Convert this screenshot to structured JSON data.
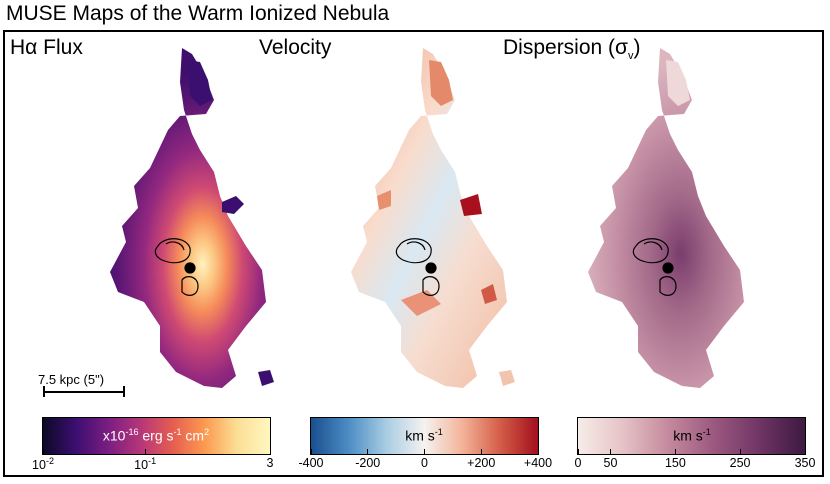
{
  "figure": {
    "title": "MUSE Maps of the Warm Ionized Nebula"
  },
  "panels": [
    {
      "label_main": "Hα Flux",
      "label_sub": "",
      "label_end": "",
      "colormap": "magma",
      "colorbar": {
        "unit_main": "x10",
        "unit_exp": "-16",
        "unit_rest": " erg s",
        "unit_exp2": "-1",
        "unit_rest2": " cm",
        "unit_exp3": "2",
        "ticks": [
          {
            "main": "10",
            "exp": "-2",
            "at": 0.0
          },
          {
            "main": "10",
            "exp": "-1",
            "at": 0.45
          },
          {
            "main": "3",
            "exp": "",
            "at": 1.0
          }
        ]
      }
    },
    {
      "label_main": "Velocity",
      "label_sub": "",
      "label_end": "",
      "colormap": "diverging",
      "colorbar": {
        "unit_main": "km s",
        "unit_exp": "-1",
        "unit_rest": "",
        "unit_exp2": "",
        "unit_rest2": "",
        "unit_exp3": "",
        "ticks": [
          {
            "main": "-400",
            "exp": "",
            "at": 0.0
          },
          {
            "main": "-200",
            "exp": "",
            "at": 0.25
          },
          {
            "main": "0",
            "exp": "",
            "at": 0.5
          },
          {
            "main": "+200",
            "exp": "",
            "at": 0.75
          },
          {
            "main": "+400",
            "exp": "",
            "at": 1.0
          }
        ]
      }
    },
    {
      "label_main": "Dispersion (σ",
      "label_sub": "v",
      "label_end": ")",
      "colormap": "pink",
      "colorbar": {
        "unit_main": "km s",
        "unit_exp": "-1",
        "unit_rest": "",
        "unit_exp2": "",
        "unit_rest2": "",
        "unit_exp3": "",
        "ticks": [
          {
            "main": "0",
            "exp": "",
            "at": 0.0
          },
          {
            "main": "50",
            "exp": "",
            "at": 0.143
          },
          {
            "main": "150",
            "exp": "",
            "at": 0.429
          },
          {
            "main": "250",
            "exp": "",
            "at": 0.714
          },
          {
            "main": "350",
            "exp": "",
            "at": 1.0
          }
        ]
      }
    }
  ],
  "scale_bar": {
    "label": "7.5 kpc (5\")"
  },
  "colors": {
    "magma": [
      "#0c0826",
      "#3b0f70",
      "#7a1d82",
      "#b5367a",
      "#e65d50",
      "#fb9b50",
      "#fcdf96",
      "#fff7c0"
    ],
    "diverging": [
      "#1a4f8f",
      "#4d8dc4",
      "#a9cde3",
      "#f5f2f0",
      "#f3b398",
      "#d45d48",
      "#a3101d"
    ],
    "pink": [
      "#f7ece8",
      "#e5c2c6",
      "#c4899d",
      "#9b5880",
      "#6f3565",
      "#3d1940"
    ]
  }
}
